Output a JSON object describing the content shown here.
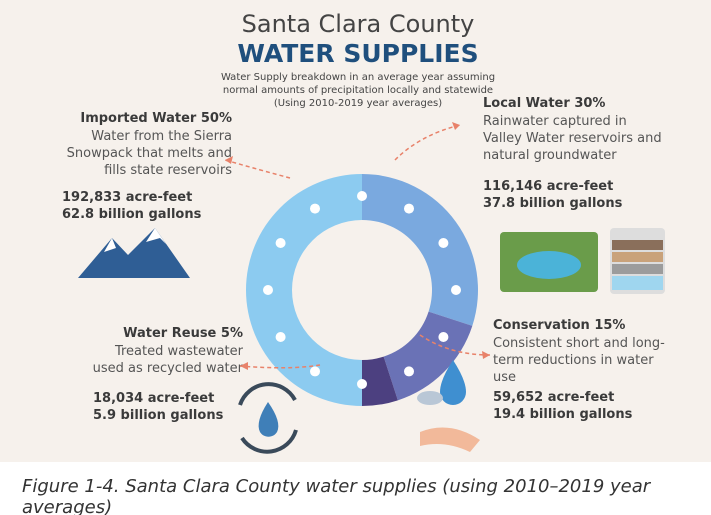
{
  "chart_data": {
    "type": "pie",
    "title": "Santa Clara County",
    "subtitle": "WATER SUPPLIES",
    "note": [
      "Water Supply breakdown in an average year assuming",
      "normal amounts of precipitation locally and statewide",
      "(Using 2010-2019 year averages)"
    ],
    "categories": [
      "Local Water",
      "Conservation",
      "Water Reuse",
      "Imported Water"
    ],
    "values": [
      30,
      15,
      5,
      50
    ],
    "value_labels": [
      "30%",
      "15%",
      "5%",
      "50%"
    ],
    "colors": [
      "#7aa9df",
      "#6a72b6",
      "#4c4080",
      "#8ccbf0"
    ],
    "descriptions": [
      [
        "Rainwater captured in",
        "Valley Water reservoirs and",
        "natural groundwater"
      ],
      [
        "Consistent short and long-",
        "term reductions in water",
        "use"
      ],
      [
        "Treated wastewater",
        "used as recycled water"
      ],
      [
        "Water from the Sierra",
        "Snowpack that melts and",
        "fills state reservoirs"
      ]
    ],
    "volumes": [
      [
        "116,146 acre-feet",
        "37.8 billion gallons"
      ],
      [
        "59,652 acre-feet",
        "19.4 billion gallons"
      ],
      [
        "18,034 acre-feet",
        "5.9 billion gallons"
      ],
      [
        "192,833 acre-feet",
        "62.8 billion gallons"
      ]
    ],
    "caption": [
      "Figure 1-4. Santa Clara County water supplies (using 2010–2019 year",
      "averages)"
    ]
  }
}
